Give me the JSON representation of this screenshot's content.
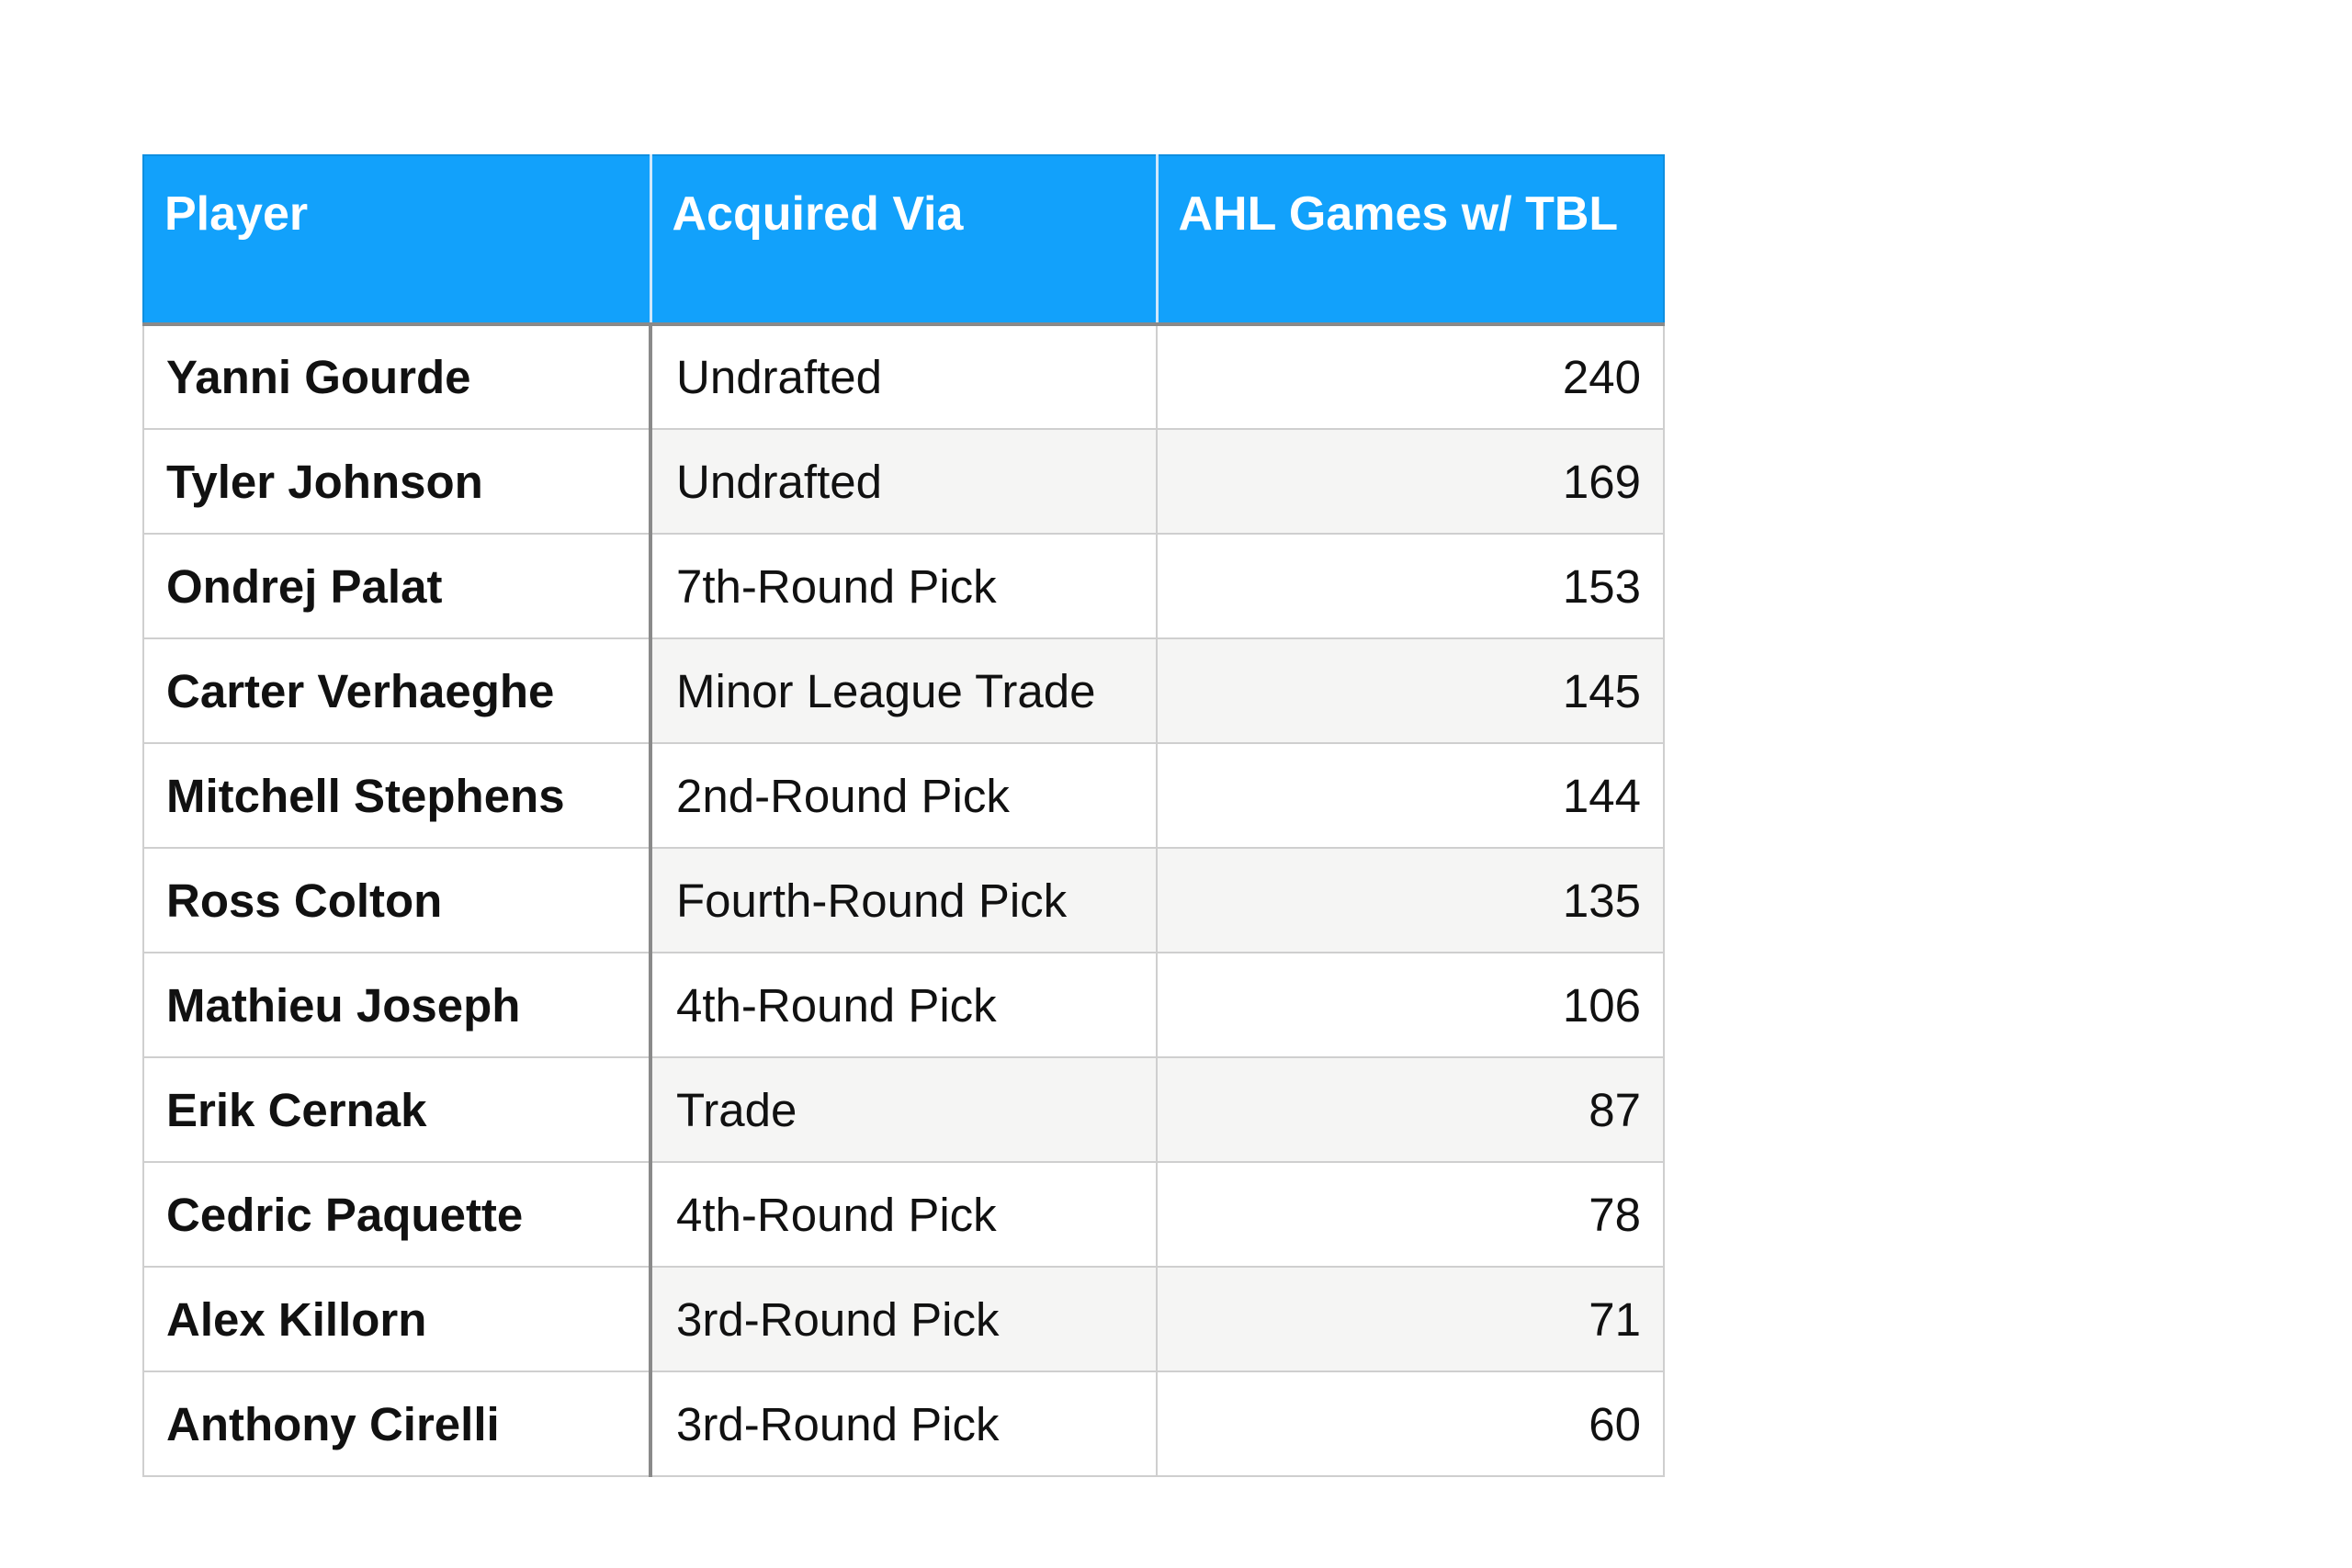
{
  "table": {
    "headers": [
      "Player",
      "Acquired Via",
      "AHL Games w/ TBL"
    ],
    "rows": [
      [
        "Yanni Gourde",
        "Undrafted",
        "240"
      ],
      [
        "Tyler Johnson",
        "Undrafted",
        "169"
      ],
      [
        "Ondrej Palat",
        "7th-Round Pick",
        "153"
      ],
      [
        "Carter Verhaeghe",
        "Minor League Trade",
        "145"
      ],
      [
        "Mitchell Stephens",
        "2nd-Round Pick",
        "144"
      ],
      [
        "Ross Colton",
        "Fourth-Round Pick",
        "135"
      ],
      [
        "Mathieu Joseph",
        "4th-Round Pick",
        "106"
      ],
      [
        "Erik Cernak",
        "Trade",
        "87"
      ],
      [
        "Cedric Paquette",
        "4th-Round Pick",
        "78"
      ],
      [
        "Alex Killorn",
        "3rd-Round Pick",
        "71"
      ],
      [
        "Anthony Cirelli",
        "3rd-Round Pick",
        "60"
      ]
    ]
  },
  "colors": {
    "header_background": "#12a1fb",
    "header_text": "#ffffff",
    "alternate_row": "#f5f5f4"
  }
}
